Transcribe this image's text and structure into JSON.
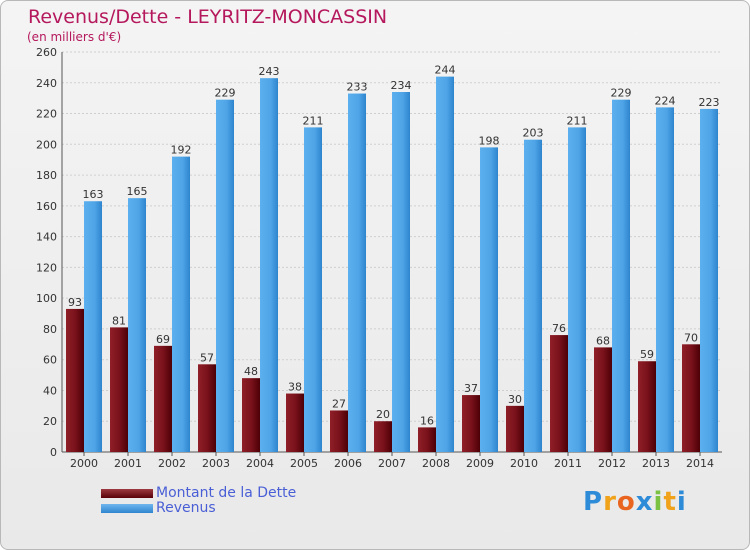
{
  "chart_data": {
    "type": "bar",
    "title": "Revenus/Dette - LEYRITZ-MONCASSIN",
    "subtitle": "(en milliers d'€)",
    "categories": [
      "2000",
      "2001",
      "2002",
      "2003",
      "2004",
      "2005",
      "2006",
      "2007",
      "2008",
      "2009",
      "2010",
      "2011",
      "2012",
      "2013",
      "2014"
    ],
    "series": [
      {
        "name": "Montant de la Dette",
        "color": "#6d0f15",
        "values": [
          93,
          81,
          69,
          57,
          48,
          38,
          27,
          20,
          16,
          37,
          30,
          76,
          68,
          59,
          70
        ]
      },
      {
        "name": "Revenus",
        "color": "#4ea4e6",
        "values": [
          163,
          165,
          192,
          229,
          243,
          211,
          233,
          234,
          244,
          198,
          203,
          211,
          229,
          224,
          223
        ]
      }
    ],
    "ylim": [
      0,
      260
    ],
    "yticks": [
      0,
      20,
      40,
      60,
      80,
      100,
      120,
      140,
      160,
      180,
      200,
      220,
      240,
      260
    ],
    "grid": true,
    "legend_position": "bottom-left"
  },
  "logo": {
    "letters": [
      "P",
      "r",
      "o",
      "x",
      "i",
      "t",
      "i"
    ],
    "colors": [
      "#2e8bd8",
      "#f0a21a",
      "#e8641f",
      "#2e8bd8",
      "#7cc242",
      "#f0a21a",
      "#2e8bd8"
    ]
  }
}
